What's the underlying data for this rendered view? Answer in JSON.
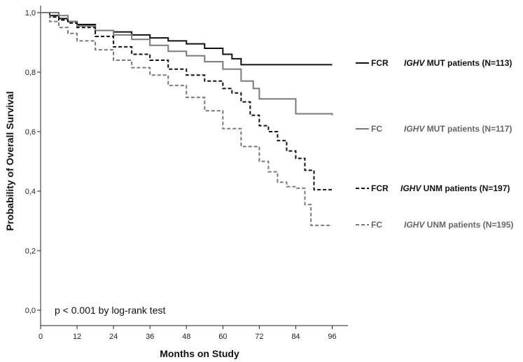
{
  "chart_data": {
    "type": "line",
    "step": true,
    "xlabel": "Months on Study",
    "ylabel": "Probability of Overall Survival",
    "xlim": [
      0,
      96
    ],
    "ylim": [
      0.0,
      1.0
    ],
    "x_ticks": [
      "0",
      "12",
      "24",
      "36",
      "48",
      "60",
      "72",
      "84",
      "96"
    ],
    "y_ticks": [
      "0,0",
      "0,2",
      "0,4",
      "0,6",
      "0,8",
      "1,0"
    ],
    "annotation": "p < 0.001  by log-rank test",
    "grid": false,
    "legend_position": "right",
    "series": [
      {
        "name": "FCR IGHV MUT patients (N=113)",
        "arm": "FCR",
        "gene": "IGHV",
        "desc": " MUT patients (N=113)",
        "color": "#111111",
        "dash": "solid",
        "x": [
          0,
          3,
          6,
          9,
          12,
          18,
          24,
          30,
          36,
          42,
          48,
          54,
          60,
          63,
          66,
          96
        ],
        "y": [
          1.0,
          0.99,
          0.98,
          0.97,
          0.96,
          0.94,
          0.935,
          0.925,
          0.915,
          0.905,
          0.895,
          0.88,
          0.86,
          0.845,
          0.825,
          0.825
        ]
      },
      {
        "name": "FC IGHV MUT patients (N=117)",
        "arm": "FC",
        "gene": "IGHV",
        "desc": " MUT patients (N=117)",
        "color": "#7a7a7a",
        "dash": "solid",
        "x": [
          0,
          3,
          6,
          9,
          12,
          18,
          24,
          30,
          36,
          42,
          48,
          54,
          60,
          66,
          70,
          72,
          78,
          84,
          96
        ],
        "y": [
          1.0,
          1.0,
          0.99,
          0.97,
          0.955,
          0.94,
          0.925,
          0.91,
          0.89,
          0.87,
          0.855,
          0.835,
          0.81,
          0.77,
          0.745,
          0.71,
          0.71,
          0.66,
          0.655
        ]
      },
      {
        "name": "FCR IGHV UNM patients (N=197)",
        "arm": "FCR",
        "gene": "IGHV",
        "desc": " UNM patients (N=197)",
        "color": "#111111",
        "dash": "dashed",
        "x": [
          0,
          3,
          6,
          9,
          12,
          18,
          24,
          30,
          36,
          42,
          48,
          54,
          60,
          63,
          66,
          69,
          72,
          75,
          78,
          81,
          84,
          87,
          90,
          96
        ],
        "y": [
          1.0,
          0.985,
          0.975,
          0.965,
          0.95,
          0.92,
          0.885,
          0.86,
          0.84,
          0.81,
          0.79,
          0.77,
          0.745,
          0.73,
          0.7,
          0.655,
          0.62,
          0.6,
          0.57,
          0.535,
          0.51,
          0.47,
          0.405,
          0.405
        ]
      },
      {
        "name": "FC IGHV UNM patients (N=195)",
        "arm": "FC",
        "gene": "IGHV",
        "desc": " UNM patients (N=195)",
        "color": "#7a7a7a",
        "dash": "dashed",
        "x": [
          0,
          3,
          6,
          9,
          12,
          18,
          24,
          30,
          36,
          42,
          48,
          54,
          60,
          66,
          72,
          75,
          78,
          81,
          84,
          87,
          89,
          96
        ],
        "y": [
          1.0,
          0.97,
          0.95,
          0.93,
          0.905,
          0.875,
          0.84,
          0.815,
          0.79,
          0.755,
          0.715,
          0.67,
          0.61,
          0.55,
          0.5,
          0.465,
          0.43,
          0.415,
          0.41,
          0.355,
          0.285,
          0.285
        ]
      }
    ]
  }
}
